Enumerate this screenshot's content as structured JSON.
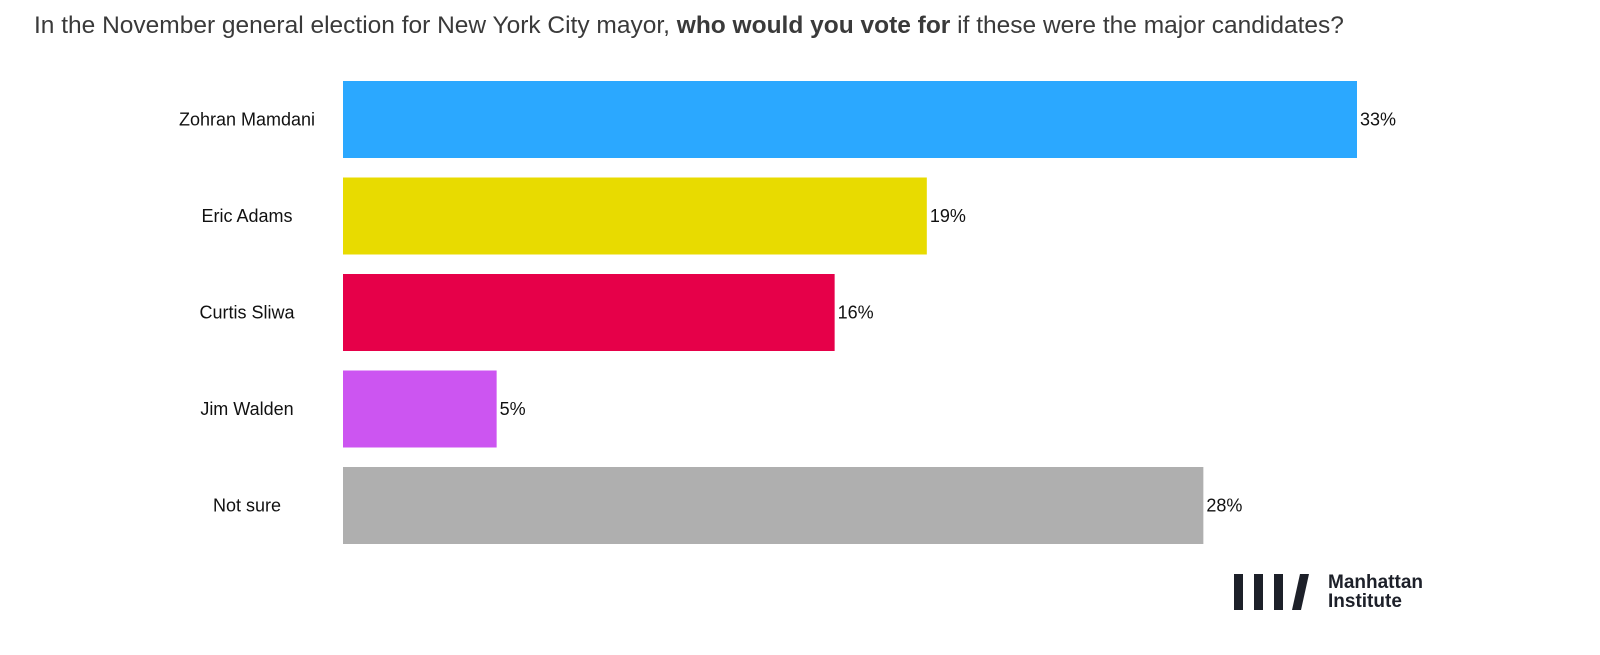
{
  "title": {
    "before": "In the November general election for New York City mayor, ",
    "bold": "who would you vote for",
    "after": " if these were the major candidates?"
  },
  "chart_data": {
    "type": "bar",
    "orientation": "horizontal",
    "categories": [
      "Zohran Mamdani",
      "Eric Adams",
      "Curtis Sliwa",
      "Jim Walden",
      "Not sure"
    ],
    "values": [
      33,
      19,
      16,
      5,
      28
    ],
    "value_labels": [
      "33%",
      "19%",
      "16%",
      "5%",
      "28%"
    ],
    "colors": [
      "#2ba8ff",
      "#e8db00",
      "#e60049",
      "#cc55f1",
      "#afafaf"
    ],
    "xlim": [
      0,
      33
    ],
    "grid": false,
    "legend": "none"
  },
  "logo": {
    "line1": "Manhattan",
    "line2": "Institute",
    "color": "#1d2029"
  }
}
